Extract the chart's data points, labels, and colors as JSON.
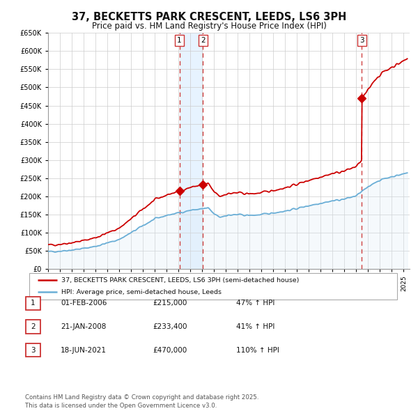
{
  "title": "37, BECKETTS PARK CRESCENT, LEEDS, LS6 3PH",
  "subtitle": "Price paid vs. HM Land Registry's House Price Index (HPI)",
  "title_fontsize": 10.5,
  "subtitle_fontsize": 8.5,
  "background_color": "#ffffff",
  "grid_color": "#cccccc",
  "hpi_line_color": "#6aaed6",
  "hpi_fill_color": "#daeaf5",
  "price_line_color": "#cc0000",
  "shade_color": "#ddeeff",
  "vline_color": "#cc3333",
  "ylim": [
    0,
    650000
  ],
  "yticks": [
    0,
    50000,
    100000,
    150000,
    200000,
    250000,
    300000,
    350000,
    400000,
    450000,
    500000,
    550000,
    600000,
    650000
  ],
  "sale_points": [
    {
      "year": 2006.08,
      "price": 215000,
      "label": "1"
    },
    {
      "year": 2008.06,
      "price": 233400,
      "label": "2"
    },
    {
      "year": 2021.46,
      "price": 470000,
      "label": "3"
    }
  ],
  "sale_vlines": [
    2006.08,
    2008.06,
    2021.46
  ],
  "legend_price_label": "37, BECKETTS PARK CRESCENT, LEEDS, LS6 3PH (semi-detached house)",
  "legend_hpi_label": "HPI: Average price, semi-detached house, Leeds",
  "table_rows": [
    {
      "num": "1",
      "date": "01-FEB-2006",
      "price": "£215,000",
      "pct": "47% ↑ HPI"
    },
    {
      "num": "2",
      "date": "21-JAN-2008",
      "price": "£233,400",
      "pct": "41% ↑ HPI"
    },
    {
      "num": "3",
      "date": "18-JUN-2021",
      "price": "£470,000",
      "pct": "110% ↑ HPI"
    }
  ],
  "footer_text": "Contains HM Land Registry data © Crown copyright and database right 2025.\nThis data is licensed under the Open Government Licence v3.0.",
  "xmin": 1995,
  "xmax": 2025.5
}
